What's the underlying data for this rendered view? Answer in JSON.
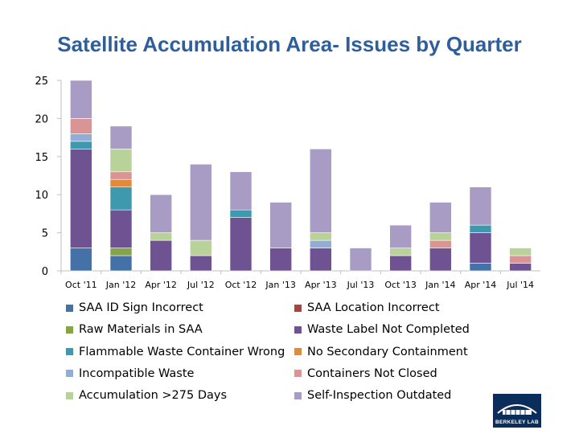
{
  "chart_data": {
    "type": "bar",
    "stacked": true,
    "title": "Satellite Accumulation Area- Issues by Quarter",
    "xlabel": "",
    "ylabel": "",
    "ylim": [
      0,
      25
    ],
    "yticks": [
      0,
      5,
      10,
      15,
      20,
      25
    ],
    "grid": false,
    "legend_position": "bottom",
    "categories": [
      "Oct '11",
      "Jan '12",
      "Apr '12",
      "Jul '12",
      "Oct '12",
      "Jan '13",
      "Apr '13",
      "Jul '13",
      "Oct '13",
      "Jan '14",
      "Apr '14",
      "Jul '14"
    ],
    "series": [
      {
        "name": "SAA ID Sign Incorrect",
        "color": "#4472a8",
        "values": [
          3,
          2,
          0,
          0,
          0,
          0,
          0,
          0,
          0,
          0,
          1,
          0
        ]
      },
      {
        "name": "SAA Location Incorrect",
        "color": "#a64540",
        "values": [
          0,
          0,
          0,
          0,
          0,
          0,
          0,
          0,
          0,
          0,
          0,
          0
        ]
      },
      {
        "name": "Raw Materials in SAA",
        "color": "#86a346",
        "values": [
          0,
          1,
          0,
          0,
          0,
          0,
          0,
          0,
          0,
          0,
          0,
          0
        ]
      },
      {
        "name": "Waste Label Not Completed",
        "color": "#6e5291",
        "values": [
          13,
          5,
          4,
          2,
          7,
          3,
          3,
          0,
          2,
          3,
          4,
          1
        ]
      },
      {
        "name": "Flammable Waste Container Wrong",
        "color": "#3e99ae",
        "values": [
          1,
          3,
          0,
          0,
          1,
          0,
          0,
          0,
          0,
          0,
          1,
          0
        ]
      },
      {
        "name": "No Secondary Containment",
        "color": "#e08b3c",
        "values": [
          0,
          1,
          0,
          0,
          0,
          0,
          0,
          0,
          0,
          0,
          0,
          0
        ]
      },
      {
        "name": "Incompatible Waste",
        "color": "#94acd4",
        "values": [
          1,
          0,
          0,
          0,
          0,
          0,
          1,
          0,
          0,
          0,
          0,
          0
        ]
      },
      {
        "name": "Containers Not Closed",
        "color": "#d99594",
        "values": [
          2,
          1,
          0,
          0,
          0,
          0,
          0,
          0,
          0,
          1,
          0,
          1
        ]
      },
      {
        "name": "Accumulation >275 Days",
        "color": "#b9d29a",
        "values": [
          0,
          3,
          1,
          2,
          0,
          0,
          1,
          0,
          1,
          1,
          0,
          1
        ]
      },
      {
        "name": "Self-Inspection Outdated",
        "color": "#a89bc4",
        "values": [
          5,
          3,
          5,
          10,
          5,
          6,
          11,
          3,
          3,
          4,
          5,
          0
        ]
      }
    ]
  },
  "branding": {
    "logo_text": "BERKELEY LAB",
    "logo_color": "#0b2d5c"
  }
}
